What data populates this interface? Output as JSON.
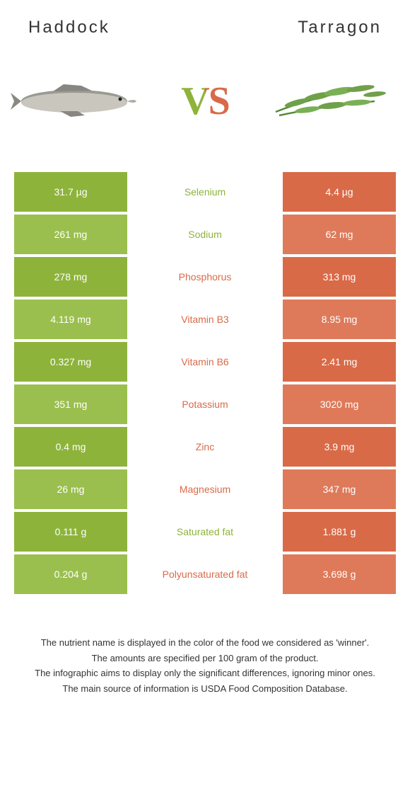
{
  "colors": {
    "green": "#8eb33b",
    "orange": "#d96a48",
    "green_row_odd": "#8eb33b",
    "green_row_even": "#9bbf4e",
    "orange_row_odd": "#d96a48",
    "orange_row_even": "#de7a5a"
  },
  "header": {
    "left_title": "Haddock",
    "right_title": "Tarragon"
  },
  "vs_label": "VS",
  "rows": [
    {
      "left": "31.7 µg",
      "label": "Selenium",
      "right": "4.4 µg",
      "winner": "left"
    },
    {
      "left": "261 mg",
      "label": "Sodium",
      "right": "62 mg",
      "winner": "left"
    },
    {
      "left": "278 mg",
      "label": "Phosphorus",
      "right": "313 mg",
      "winner": "right"
    },
    {
      "left": "4.119 mg",
      "label": "Vitamin B3",
      "right": "8.95 mg",
      "winner": "right"
    },
    {
      "left": "0.327 mg",
      "label": "Vitamin B6",
      "right": "2.41 mg",
      "winner": "right"
    },
    {
      "left": "351 mg",
      "label": "Potassium",
      "right": "3020 mg",
      "winner": "right"
    },
    {
      "left": "0.4 mg",
      "label": "Zinc",
      "right": "3.9 mg",
      "winner": "right"
    },
    {
      "left": "26 mg",
      "label": "Magnesium",
      "right": "347 mg",
      "winner": "right"
    },
    {
      "left": "0.111 g",
      "label": "Saturated fat",
      "right": "1.881 g",
      "winner": "left"
    },
    {
      "left": "0.204 g",
      "label": "Polyunsaturated fat",
      "right": "3.698 g",
      "winner": "right"
    }
  ],
  "footer": {
    "line1": "The nutrient name is displayed in the color of the food we considered as 'winner'.",
    "line2": "The amounts are specified per 100 gram of the product.",
    "line3": "The infographic aims to display only the significant differences, ignoring minor ones.",
    "line4": "The main source of information is USDA Food Composition Database."
  }
}
